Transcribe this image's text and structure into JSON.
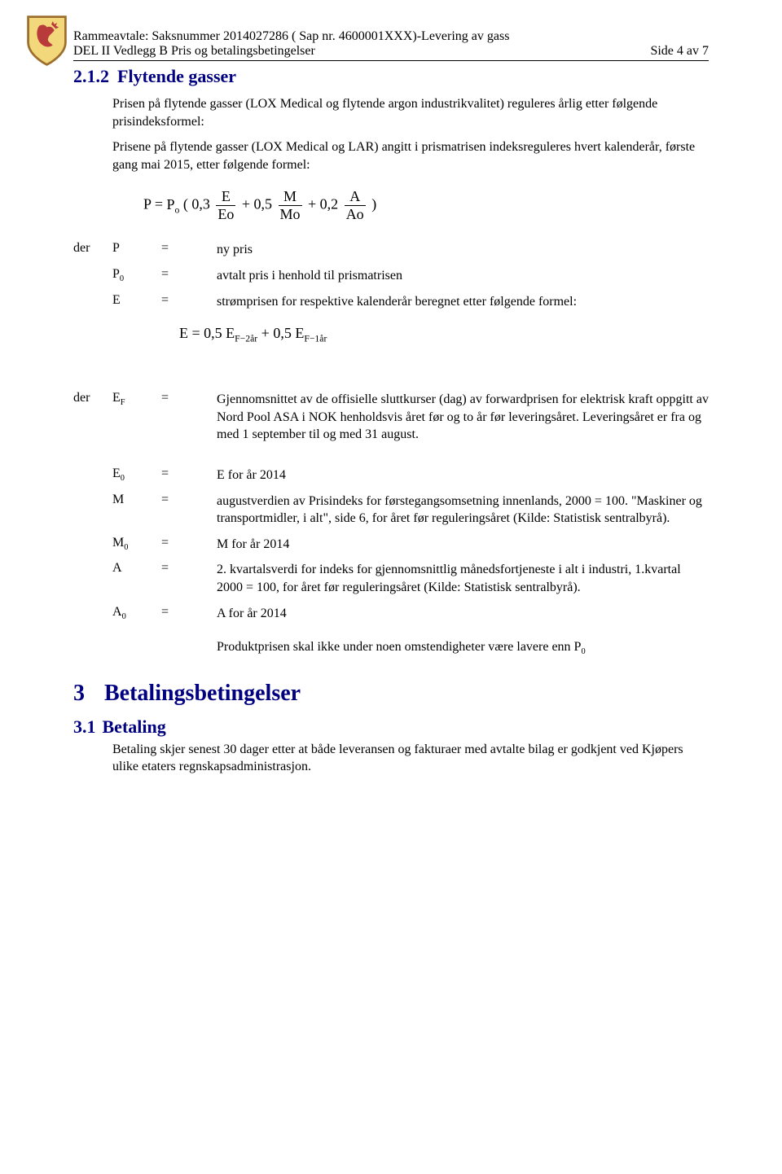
{
  "header": {
    "line1": "Rammeavtale: Saksnummer 2014027286 ( Sap nr. 4600001XXX)-Levering av gass",
    "line2_left": "DEL II Vedlegg B Pris og betalingsbetingelser",
    "line2_right": "Side 4 av 7"
  },
  "logo": {
    "shield_border": "#9c6f2e",
    "shield_fill": "#f2d87a",
    "lion_fill": "#b83a3a"
  },
  "section_2_1_2": {
    "num": "2.1.2",
    "title": "Flytende gasser",
    "para1": "Prisen på flytende gasser (LOX Medical og flytende argon industrikvalitet) reguleres årlig etter følgende prisindeksformel:",
    "para2": "Prisene på flytende gasser (LOX Medical og LAR) angitt i prismatrisen indeksreguleres hvert kalenderår, første gang mai 2015, etter følgende formel:"
  },
  "formula1": {
    "lhs": "P",
    "eq": "=",
    "P0": "P",
    "P0_sub": "o",
    "open": "( 0,3",
    "f1_num": "E",
    "f1_den": "Eo",
    "plus1": "+ 0,5",
    "f2_num": "M",
    "f2_den": "Mo",
    "plus2": "+ 0,2",
    "f3_num": "A",
    "f3_den": "Ao",
    "close": ")"
  },
  "defs1": [
    {
      "der": "der",
      "sym": "P",
      "eq": "=",
      "txt": "ny pris"
    },
    {
      "der": "",
      "sym_html": "P<span class=\"sub\">0</span>",
      "eq": "=",
      "txt": "avtalt pris i henhold til prismatrisen"
    },
    {
      "der": "",
      "sym": "E",
      "eq": "=",
      "txt": "strømprisen for respektive kalenderår beregnet etter følgende formel:"
    }
  ],
  "formula2": {
    "lhs": "E",
    "eq": "= 0,5",
    "t1_base": "E",
    "t1_sub": "F−2år",
    "plus": "+ 0,5",
    "t2_base": "E",
    "t2_sub": "F−1år"
  },
  "defs2": [
    {
      "der": "der",
      "sym_html": "E<span class=\"sub\">F</span>",
      "eq": "=",
      "txt": "Gjennomsnittet av de offisielle sluttkurser (dag) av forwardprisen for elektrisk kraft oppgitt av Nord Pool ASA i NOK henholdsvis året før og to år før leveringsåret. Leveringsåret er fra og med 1 september til og med 31 august."
    },
    {
      "der": "",
      "sym_html": "E<span class=\"sub\">0</span>",
      "eq": "=",
      "txt": " E for år 2014"
    },
    {
      "der": "",
      "sym": "M",
      "eq": "=",
      "txt": "augustverdien av Prisindeks for førstegangsomsetning innenlands, 2000 = 100. \"Maskiner og transportmidler, i alt\", side 6, for året før reguleringsåret (Kilde: Statistisk sentralbyrå)."
    },
    {
      "der": "",
      "sym_html": "M<span class=\"sub\">0</span>",
      "eq": "=",
      "txt": "M for år 2014"
    },
    {
      "der": "",
      "sym": "A",
      "eq": "=",
      "txt": "2. kvartalsverdi for indeks for gjennomsnittlig månedsfortjeneste i alt i industri, 1.kvartal 2000 = 100, for året før reguleringsåret (Kilde: Statistisk sentralbyrå)."
    },
    {
      "der": "",
      "sym_html": "A<span class=\"sub\">0</span>",
      "eq": "=",
      "txt": "A for år 2014"
    }
  ],
  "note_para": "Produktprisen skal ikke under noen omstendigheter være lavere enn P",
  "note_para_sub": "0",
  "section_3": {
    "num": "3",
    "title": "Betalingsbetingelser"
  },
  "section_3_1": {
    "num": "3.1",
    "title": "Betaling",
    "para": "Betaling skjer senest 30 dager etter at både leveransen og fakturaer med avtalte bilag er godkjent ved Kjøpers ulike etaters regnskapsadministrasjon."
  },
  "colors": {
    "heading": "#000080",
    "text": "#000000",
    "rule": "#000000"
  }
}
